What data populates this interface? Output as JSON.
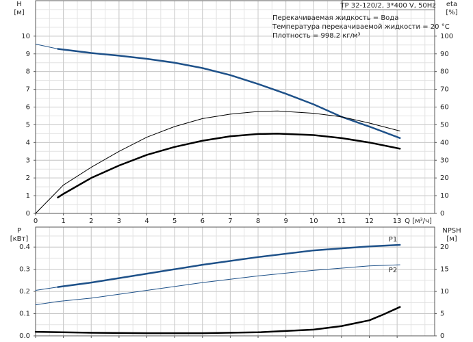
{
  "chart_data": [
    {
      "type": "line",
      "title": "TP 32-120/2, 3*400 V, 50Hz",
      "notes": [
        "Перекачиваемая жидкость = Вода",
        "Температура перекачиваемой жидкости = 20 °C",
        "Плотность = 998.2 кг/м³"
      ],
      "y_label": [
        "H",
        "[м]"
      ],
      "y2_label": [
        "eta",
        "[%]"
      ],
      "x_label": "Q [м³/ч]",
      "xlim": [
        0,
        14.35
      ],
      "xticks": [
        0,
        1,
        2,
        3,
        4,
        5,
        6,
        7,
        8,
        9,
        10,
        11,
        12,
        13
      ],
      "ylim": [
        0,
        12
      ],
      "yticks": [
        0,
        1,
        2,
        3,
        4,
        5,
        6,
        7,
        8,
        9,
        10
      ],
      "y2lim": [
        0,
        120
      ],
      "y2ticks": [
        0,
        10,
        20,
        30,
        40,
        50,
        60,
        70,
        80,
        90,
        100
      ],
      "grid": true,
      "minor_grid": true,
      "series": [
        {
          "color": "#1e5189",
          "style": "thin",
          "x": [
            0,
            0.8
          ],
          "values": [
            9.55,
            9.28
          ]
        },
        {
          "color": "#1e5189",
          "style": "thick",
          "x": [
            0.8,
            2,
            3,
            4,
            5,
            6,
            7,
            8,
            9,
            10,
            11,
            12,
            13.1
          ],
          "values": [
            9.28,
            9.05,
            8.9,
            8.72,
            8.5,
            8.2,
            7.8,
            7.3,
            6.75,
            6.15,
            5.45,
            4.9,
            4.25
          ]
        },
        {
          "color": "#000000",
          "style": "thin",
          "axis": "y2",
          "x": [
            0,
            1,
            2,
            3,
            4,
            5,
            6,
            7,
            8,
            8.7,
            10,
            11,
            12,
            13.1
          ],
          "values": [
            0,
            16,
            26,
            35,
            43,
            49,
            53.5,
            56,
            57.5,
            57.8,
            56.5,
            54.5,
            51,
            46.5
          ]
        },
        {
          "color": "#000000",
          "style": "thick",
          "axis": "y2",
          "x": [
            0.8,
            1,
            2,
            3,
            4,
            5,
            6,
            7,
            8,
            8.7,
            10,
            11,
            12,
            13.1
          ],
          "values": [
            9,
            11,
            20,
            27,
            33,
            37.5,
            41,
            43.5,
            44.8,
            45,
            44.2,
            42.5,
            40,
            36.5
          ]
        }
      ]
    },
    {
      "type": "line",
      "y_label": [
        "P",
        "[кВт]"
      ],
      "y2_label": [
        "NPSH",
        "[м]"
      ],
      "xlim": [
        0,
        14.35
      ],
      "xticks": [
        0,
        1,
        2,
        3,
        4,
        5,
        6,
        7,
        8,
        9,
        10,
        11,
        12,
        13
      ],
      "xtick_labels": false,
      "ylim": [
        0,
        0.49
      ],
      "yticks": [
        {
          "value": 0,
          "label": "0.0"
        },
        0.1,
        0.2,
        0.3,
        0.4
      ],
      "y2lim": [
        0,
        24.5
      ],
      "y2ticks": [
        0,
        5,
        10,
        15,
        20
      ],
      "grid": true,
      "minor_grid": true,
      "series": [
        {
          "color": "#1e5189",
          "style": "thin",
          "x": [
            0,
            0.8
          ],
          "values": [
            0.205,
            0.22
          ]
        },
        {
          "name": "P1",
          "color": "#1e5189",
          "style": "thick",
          "x": [
            0.8,
            2,
            4,
            6,
            8,
            10,
            12,
            13.1
          ],
          "values": [
            0.22,
            0.24,
            0.28,
            0.32,
            0.355,
            0.385,
            0.403,
            0.41
          ]
        },
        {
          "name": "P2",
          "color": "#1e5189",
          "style": "thin",
          "x": [
            0,
            0.8,
            2,
            4,
            6,
            8,
            10,
            12,
            13.1
          ],
          "values": [
            0.14,
            0.155,
            0.17,
            0.205,
            0.24,
            0.27,
            0.295,
            0.315,
            0.32
          ]
        },
        {
          "color": "#000000",
          "style": "thick",
          "axis": "y2",
          "x": [
            0,
            2,
            4,
            6,
            8,
            10,
            11,
            12,
            12.5,
            13.1
          ],
          "values": [
            0.9,
            0.7,
            0.6,
            0.6,
            0.8,
            1.4,
            2.2,
            3.5,
            4.8,
            6.5
          ]
        }
      ]
    }
  ]
}
